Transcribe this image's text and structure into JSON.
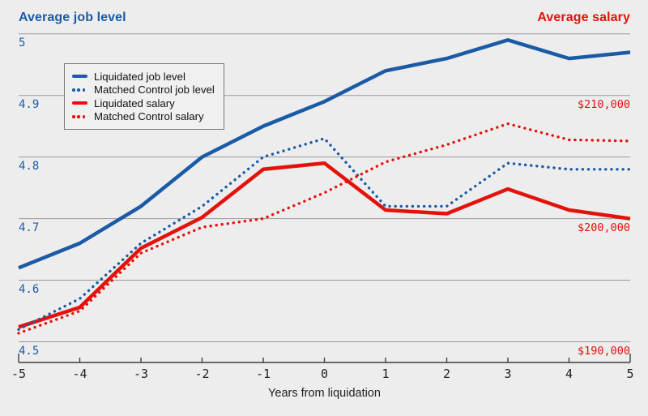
{
  "page": {
    "background": "#ededed"
  },
  "chart_data": {
    "type": "line",
    "title_left": "Average job level",
    "title_right": "Average salary",
    "xlabel": "Years from liquidation",
    "x": [
      -5,
      -4,
      -3,
      -2,
      -1,
      0,
      1,
      2,
      3,
      4,
      5
    ],
    "x_tick_labels": [
      "-5",
      "-4",
      "-3",
      "-2",
      "-1",
      "0",
      "1",
      "2",
      "3",
      "4",
      "5"
    ],
    "left_axis": {
      "label": "Average job level",
      "color": "#1b5ba6",
      "tick_values": [
        5.0,
        4.9,
        4.8,
        4.7,
        4.6,
        4.5
      ],
      "tick_labels": [
        "5",
        "4.9",
        "4.8",
        "4.7",
        "4.6",
        "4.5"
      ],
      "range": [
        4.5,
        5.0
      ],
      "grid": true
    },
    "right_axis": {
      "label": "Average salary",
      "color": "#e3120b",
      "tick_values": [
        210000,
        200000,
        190000
      ],
      "tick_labels": [
        "$210,000",
        "$200,000",
        "$190,000"
      ],
      "range": [
        190000,
        215000
      ],
      "note": "right axis aligned so $190,000 = level 4.5 and each 0.1 level = $5,000"
    },
    "series": [
      {
        "name": "Liquidated job level",
        "axis": "left",
        "style": "solid",
        "color": "#1b5ba6",
        "values": [
          4.62,
          4.66,
          4.72,
          4.8,
          4.85,
          4.89,
          4.94,
          4.96,
          4.99,
          4.96,
          4.97
        ]
      },
      {
        "name": "Matched Control job level",
        "axis": "left",
        "style": "dotted",
        "color": "#1b5ba6",
        "values": [
          4.52,
          4.57,
          4.66,
          4.72,
          4.8,
          4.83,
          4.72,
          4.72,
          4.79,
          4.78,
          4.78
        ]
      },
      {
        "name": "Liquidated salary",
        "axis": "right",
        "style": "solid",
        "color": "#e3120b",
        "values": [
          191200,
          192800,
          197600,
          200100,
          204000,
          204500,
          200700,
          200400,
          202400,
          200700,
          200000
        ]
      },
      {
        "name": "Matched Control salary",
        "axis": "right",
        "style": "dotted",
        "color": "#e3120b",
        "values": [
          190700,
          192500,
          197200,
          199300,
          200000,
          202100,
          204600,
          206000,
          207700,
          206400,
          206300
        ]
      }
    ],
    "legend": {
      "position": "top-left",
      "entries": [
        {
          "label": "Liquidated job level",
          "style": "solid",
          "color": "#1b5ba6"
        },
        {
          "label": "Matched Control job level",
          "style": "dotted",
          "color": "#1b5ba6"
        },
        {
          "label": "Liquidated salary",
          "style": "solid",
          "color": "#e3120b"
        },
        {
          "label": "Matched Control salary",
          "style": "dotted",
          "color": "#e3120b"
        }
      ]
    }
  }
}
